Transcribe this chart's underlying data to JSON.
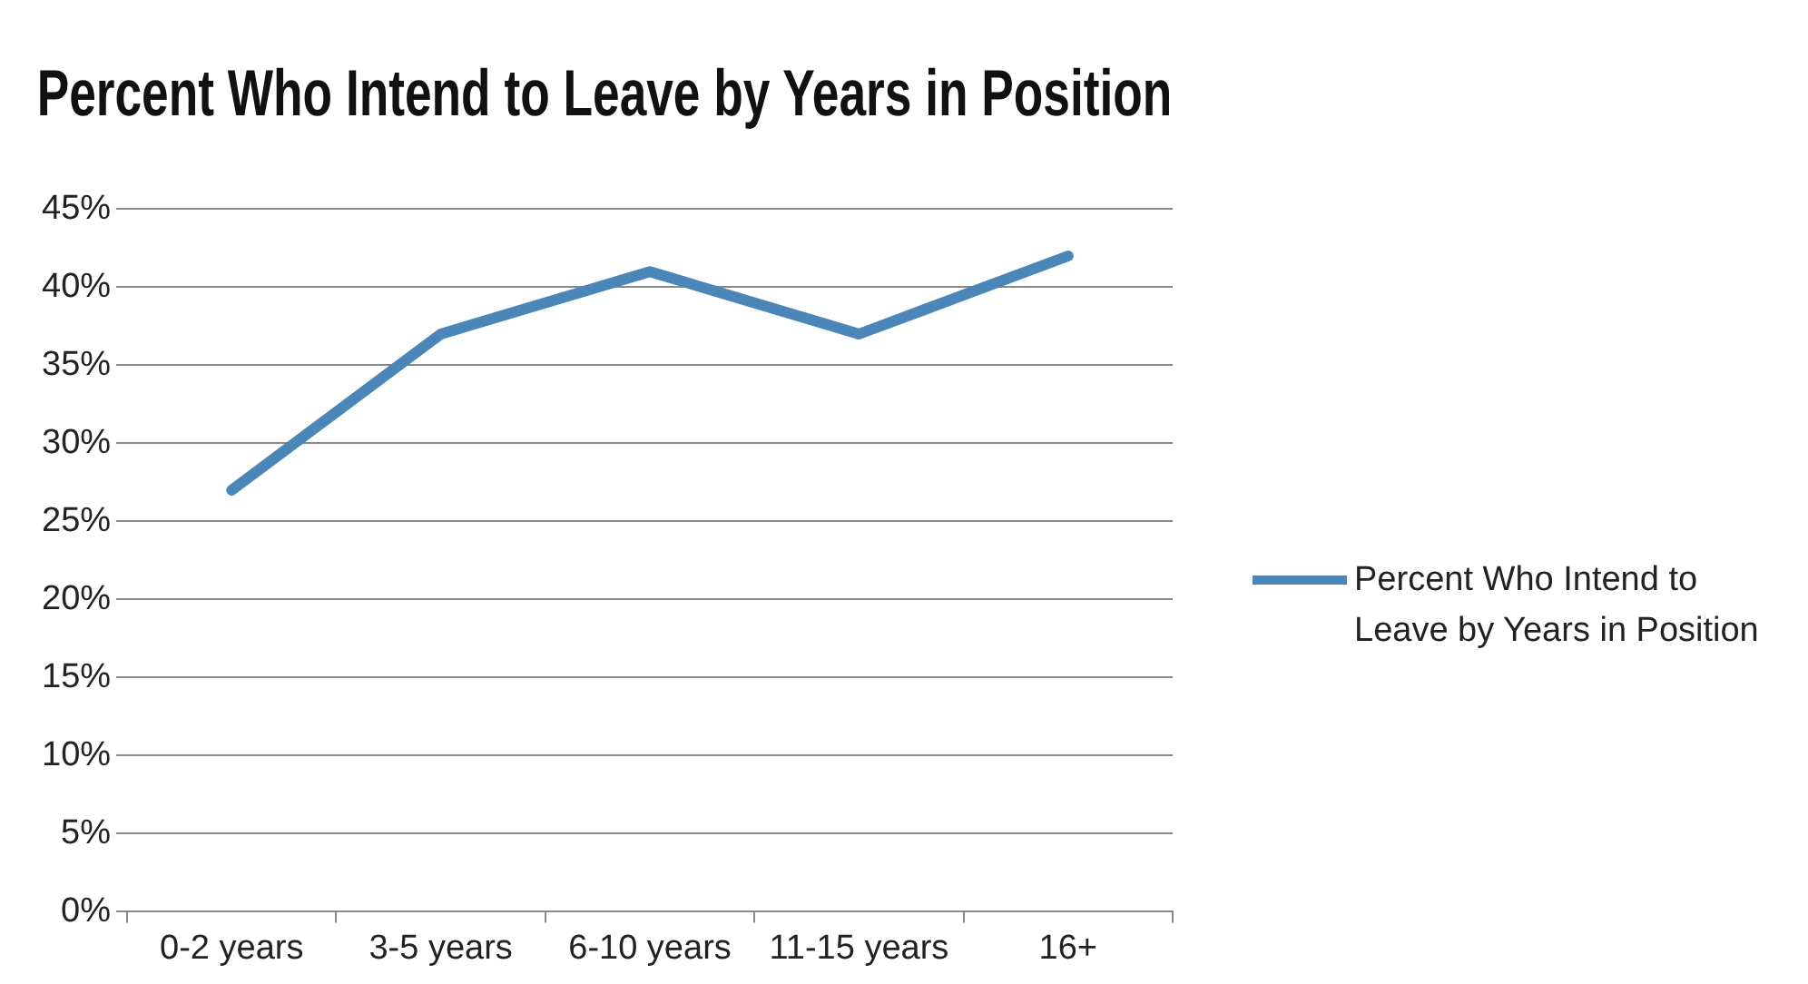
{
  "chart_data": {
    "type": "line",
    "title": "Percent Who Intend to Leave by Years in Position",
    "categories": [
      "0-2 years",
      "3-5 years",
      "6-10 years",
      "11-15 years",
      "16+"
    ],
    "series": [
      {
        "name": "Percent Who Intend to Leave by Years in Position",
        "color": "#4a86b8",
        "values": [
          27,
          37,
          41,
          37,
          42
        ]
      }
    ],
    "ylim": [
      0,
      45
    ],
    "yticks": [
      {
        "value": 0,
        "label": "0%"
      },
      {
        "value": 5,
        "label": "5%"
      },
      {
        "value": 10,
        "label": "10%"
      },
      {
        "value": 15,
        "label": "15%"
      },
      {
        "value": 20,
        "label": "20%"
      },
      {
        "value": 25,
        "label": "25%"
      },
      {
        "value": 30,
        "label": "30%"
      },
      {
        "value": 35,
        "label": "35%"
      },
      {
        "value": 40,
        "label": "40%"
      },
      {
        "value": 45,
        "label": "45%"
      }
    ],
    "grid": "y",
    "legend": "right",
    "marker": "none",
    "line_style": "solid"
  }
}
